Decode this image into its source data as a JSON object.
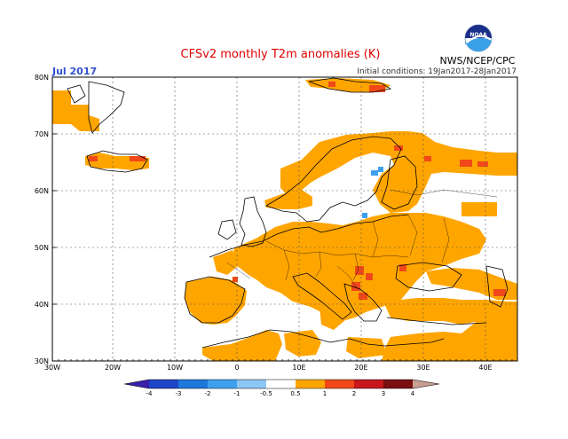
{
  "title": "CFSv2 monthly T2m anomalies (K)",
  "month_label": "Jul 2017",
  "initial_conditions": "Initial conditions: 19Jan2017-28Jan2017",
  "agency": "NWS/NCEP/CPC",
  "logo_text": "NOAA",
  "lat_labels": [
    "80N",
    "70N",
    "60N",
    "50N",
    "40N",
    "30N"
  ],
  "lon_labels": [
    "30W",
    "20W",
    "10W",
    "0",
    "10E",
    "20E",
    "30E",
    "40E"
  ],
  "colorbar": {
    "labels": [
      "-4",
      "-3",
      "-2",
      "-1",
      "-0.5",
      "0.5",
      "1",
      "2",
      "3",
      "4"
    ],
    "colors": [
      "#3a1fa8",
      "#2046c8",
      "#1e78dc",
      "#3ea0f0",
      "#8ec6f4",
      "#ffffff",
      "#ffa500",
      "#f04818",
      "#c8161e",
      "#7a1010",
      "#c8a090"
    ]
  },
  "colors": {
    "title": "#e00000",
    "month": "#3050d0",
    "warm": "#ffa500",
    "hot": "#f04818",
    "cold": "#3ea0f0"
  }
}
